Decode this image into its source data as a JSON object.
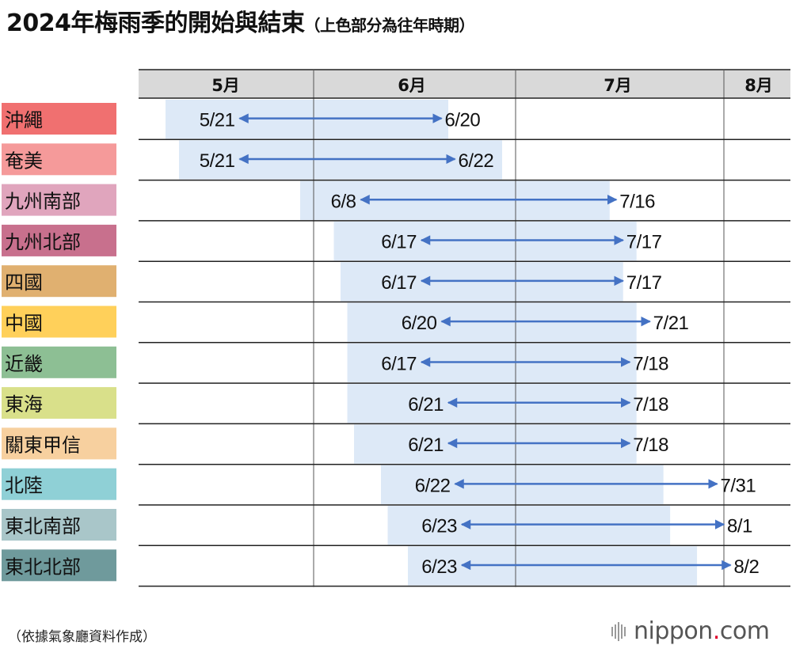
{
  "title": "2024年梅雨季的開始與結束",
  "subtitle": "（上色部分為往年時期）",
  "source": "（依據氣象廳資料作成）",
  "brand": {
    "name": "nippon",
    "dot": ".",
    "tld": "com",
    "dot_color": "#e0002a"
  },
  "colors": {
    "header_bg": "#d9d9d9",
    "band": "#dde9f7",
    "arrow": "#4472c4",
    "grid": "#222222"
  },
  "chart_data": {
    "type": "range",
    "months": [
      "5月",
      "6月",
      "7月",
      "8月"
    ],
    "x_unit": "date (2024)",
    "rows": [
      {
        "region": "沖繩",
        "color": "#f07070",
        "start": "5/21",
        "end": "6/20",
        "normal_start": "5/10",
        "normal_end": "6/21"
      },
      {
        "region": "奄美",
        "color": "#f59a9a",
        "start": "5/21",
        "end": "6/22",
        "normal_start": "5/12",
        "normal_end": "6/29"
      },
      {
        "region": "九州南部",
        "color": "#e0a5bd",
        "start": "6/8",
        "end": "7/16",
        "normal_start": "5/30",
        "normal_end": "7/15"
      },
      {
        "region": "九州北部",
        "color": "#c8708d",
        "start": "6/17",
        "end": "7/17",
        "normal_start": "6/4",
        "normal_end": "7/19"
      },
      {
        "region": "四國",
        "color": "#e0b070",
        "start": "6/17",
        "end": "7/17",
        "normal_start": "6/5",
        "normal_end": "7/17"
      },
      {
        "region": "中國",
        "color": "#ffd05a",
        "start": "6/20",
        "end": "7/21",
        "normal_start": "6/6",
        "normal_end": "7/19"
      },
      {
        "region": "近畿",
        "color": "#8dbf94",
        "start": "6/17",
        "end": "7/18",
        "normal_start": "6/6",
        "normal_end": "7/19"
      },
      {
        "region": "東海",
        "color": "#d9e08a",
        "start": "6/21",
        "end": "7/18",
        "normal_start": "6/6",
        "normal_end": "7/19"
      },
      {
        "region": "關東甲信",
        "color": "#f7d09f",
        "start": "6/21",
        "end": "7/18",
        "normal_start": "6/7",
        "normal_end": "7/19"
      },
      {
        "region": "北陸",
        "color": "#8fd0d6",
        "start": "6/22",
        "end": "7/31",
        "normal_start": "6/11",
        "normal_end": "7/23"
      },
      {
        "region": "東北南部",
        "color": "#a9c6c9",
        "start": "6/23",
        "end": "8/1",
        "normal_start": "6/12",
        "normal_end": "7/24"
      },
      {
        "region": "東北北部",
        "color": "#6f9a9c",
        "start": "6/23",
        "end": "8/2",
        "normal_start": "6/15",
        "normal_end": "7/28"
      }
    ]
  }
}
